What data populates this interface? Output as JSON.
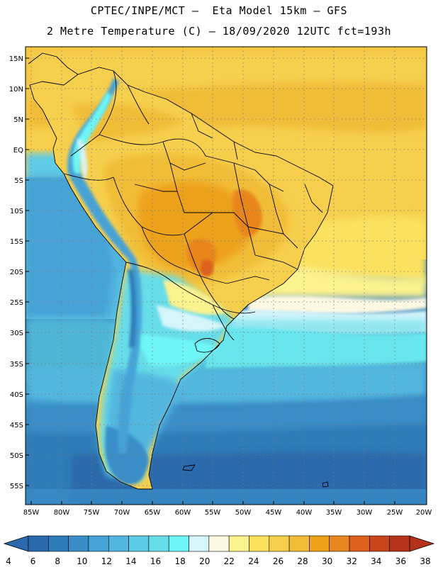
{
  "header": {
    "line1": "CPTEC/INPE/MCT –  Eta Model 15km – GFS",
    "line2": "2 Metre Temperature (C) – 18/09/2020 12UTC fct=193h"
  },
  "map": {
    "lat_labels": [
      "15N",
      "10N",
      "5N",
      "EQ",
      "5S",
      "10S",
      "15S",
      "20S",
      "25S",
      "30S",
      "35S",
      "40S",
      "45S",
      "50S",
      "55S"
    ],
    "lon_labels": [
      "85W",
      "80W",
      "75W",
      "70W",
      "65W",
      "60W",
      "55W",
      "50W",
      "45W",
      "40W",
      "35W",
      "30W",
      "25W",
      "20W"
    ]
  },
  "colorbar": {
    "ticks": [
      "4",
      "6",
      "8",
      "10",
      "12",
      "14",
      "16",
      "18",
      "20",
      "22",
      "24",
      "26",
      "28",
      "30",
      "32",
      "34",
      "36",
      "38"
    ],
    "colors": [
      "#2a69ab",
      "#2f7cb8",
      "#3a8ec8",
      "#47a3d6",
      "#52b6df",
      "#5ecbe6",
      "#66dde9",
      "#6ef5f5",
      "#d6f5fb",
      "#fdf8e2",
      "#fcf28e",
      "#fae15e",
      "#f6cf4d",
      "#f1bd39",
      "#eda21a",
      "#e8861f",
      "#dd611d",
      "#c9451c",
      "#b5321a"
    ]
  }
}
